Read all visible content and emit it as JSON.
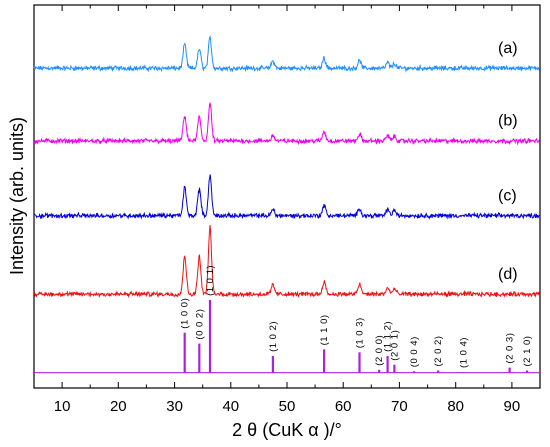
{
  "chart_data": {
    "type": "line",
    "title": "",
    "xlabel": "2 θ (CuK α )/°",
    "ylabel": "Intensity (arb. units)",
    "xlim": [
      5,
      95
    ],
    "x_ticks": [
      "10",
      "20",
      "30",
      "40",
      "50",
      "60",
      "70",
      "80",
      "90"
    ],
    "grid": false,
    "legend": "none",
    "series": [
      {
        "name": "(a)",
        "color": "#1e90ff",
        "offset": 0.835,
        "peaks": [
          {
            "x": 31.8,
            "y": 0.52
          },
          {
            "x": 34.4,
            "y": 0.42
          },
          {
            "x": 36.3,
            "y": 0.66
          },
          {
            "x": 47.5,
            "y": 0.16
          },
          {
            "x": 56.6,
            "y": 0.22
          },
          {
            "x": 62.9,
            "y": 0.17
          },
          {
            "x": 67.9,
            "y": 0.12
          },
          {
            "x": 69.1,
            "y": 0.1
          }
        ]
      },
      {
        "name": "(b)",
        "color": "#ee00ee",
        "offset": 0.645,
        "peaks": [
          {
            "x": 31.8,
            "y": 0.55
          },
          {
            "x": 34.4,
            "y": 0.52
          },
          {
            "x": 36.3,
            "y": 0.82
          },
          {
            "x": 47.5,
            "y": 0.12
          },
          {
            "x": 56.6,
            "y": 0.2
          },
          {
            "x": 62.9,
            "y": 0.15
          },
          {
            "x": 67.9,
            "y": 0.12
          },
          {
            "x": 69.1,
            "y": 0.1
          }
        ]
      },
      {
        "name": "(c)",
        "color": "#0000dd",
        "offset": 0.45,
        "peaks": [
          {
            "x": 31.8,
            "y": 0.62
          },
          {
            "x": 34.4,
            "y": 0.58
          },
          {
            "x": 36.3,
            "y": 0.88
          },
          {
            "x": 47.5,
            "y": 0.14
          },
          {
            "x": 56.6,
            "y": 0.22
          },
          {
            "x": 62.9,
            "y": 0.16
          },
          {
            "x": 67.9,
            "y": 0.14
          },
          {
            "x": 69.1,
            "y": 0.12
          }
        ]
      },
      {
        "name": "(d)",
        "color": "#ee1111",
        "offset": 0.245,
        "peaks": [
          {
            "x": 31.8,
            "y": 0.85
          },
          {
            "x": 34.4,
            "y": 0.82
          },
          {
            "x": 36.3,
            "y": 1.45
          },
          {
            "x": 47.5,
            "y": 0.2
          },
          {
            "x": 56.6,
            "y": 0.28
          },
          {
            "x": 62.9,
            "y": 0.22
          },
          {
            "x": 67.9,
            "y": 0.14
          },
          {
            "x": 69.1,
            "y": 0.12
          }
        ]
      }
    ],
    "reference": {
      "color": "#aa22dd",
      "offset": 0.04,
      "lines": [
        {
          "x": 31.8,
          "y": 0.55,
          "label": "(1 0 0)"
        },
        {
          "x": 34.4,
          "y": 0.4,
          "label": "(0 0 2)"
        },
        {
          "x": 36.3,
          "y": 1.0,
          "label": "(1 0 1)"
        },
        {
          "x": 47.5,
          "y": 0.23,
          "label": "(1 0 2)"
        },
        {
          "x": 56.6,
          "y": 0.32,
          "label": "(1 1 0)"
        },
        {
          "x": 62.9,
          "y": 0.28,
          "label": "(1 0 3)"
        },
        {
          "x": 66.4,
          "y": 0.04,
          "label": "(2 0 0)"
        },
        {
          "x": 67.9,
          "y": 0.23,
          "label": "(1 1 2)"
        },
        {
          "x": 69.1,
          "y": 0.11,
          "label": "(2 0 1)"
        },
        {
          "x": 72.6,
          "y": 0.02,
          "label": "(0 0 4)"
        },
        {
          "x": 76.9,
          "y": 0.03,
          "label": "(2 0 2)"
        },
        {
          "x": 81.4,
          "y": 0.01,
          "label": "(1 0 4)"
        },
        {
          "x": 89.6,
          "y": 0.07,
          "label": "(2 0 3)"
        },
        {
          "x": 92.7,
          "y": 0.03,
          "label": "(2 1 0)"
        }
      ]
    }
  }
}
